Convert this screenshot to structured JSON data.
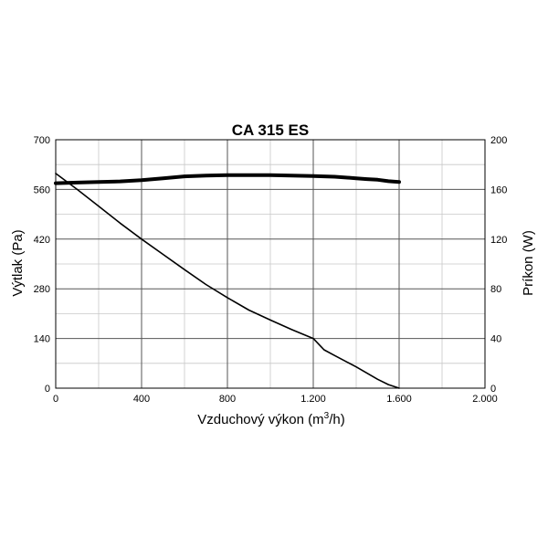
{
  "chart_data": {
    "type": "line",
    "title": "CA 315 ES",
    "xlabel": "Vzduchový výkon (m",
    "xlabel_sup": "3",
    "xlabel_end": "/h)",
    "ylabel_left": "Výtlak (Pa)",
    "ylabel_right": "Príkon (W)",
    "xlim": [
      0,
      2000
    ],
    "ylim_left": [
      0,
      700
    ],
    "ylim_right": [
      0,
      200
    ],
    "x_ticks": [
      {
        "value": 0,
        "label": "0"
      },
      {
        "value": 400,
        "label": "400"
      },
      {
        "value": 800,
        "label": "800"
      },
      {
        "value": 1200,
        "label": "1.200"
      },
      {
        "value": 1600,
        "label": "1.600"
      },
      {
        "value": 2000,
        "label": "2.000"
      }
    ],
    "y_left_ticks": [
      {
        "value": 0,
        "label": "0"
      },
      {
        "value": 140,
        "label": "140"
      },
      {
        "value": 280,
        "label": "280"
      },
      {
        "value": 420,
        "label": "420"
      },
      {
        "value": 560,
        "label": "560"
      },
      {
        "value": 700,
        "label": "700"
      }
    ],
    "y_right_ticks": [
      {
        "value": 0,
        "label": "0"
      },
      {
        "value": 40,
        "label": "40"
      },
      {
        "value": 80,
        "label": "80"
      },
      {
        "value": 120,
        "label": "120"
      },
      {
        "value": 160,
        "label": "160"
      },
      {
        "value": 200,
        "label": "200"
      }
    ],
    "grid": true,
    "series": [
      {
        "axis": "left",
        "line_width": "thin",
        "x": [
          0,
          100,
          200,
          300,
          400,
          500,
          600,
          700,
          800,
          900,
          1000,
          1100,
          1200,
          1250,
          1300,
          1400,
          1500,
          1550,
          1600
        ],
        "values": [
          605,
          560,
          513,
          465,
          420,
          377,
          334,
          292,
          255,
          220,
          192,
          165,
          140,
          108,
          92,
          60,
          25,
          10,
          0
        ]
      },
      {
        "axis": "right",
        "line_width": "thick",
        "x": [
          0,
          100,
          200,
          300,
          400,
          500,
          600,
          700,
          800,
          900,
          1000,
          1100,
          1200,
          1300,
          1400,
          1450,
          1500,
          1550,
          1600
        ],
        "values": [
          165,
          165.5,
          166,
          166.5,
          167.5,
          169,
          170.5,
          171.2,
          171.5,
          171.5,
          171.5,
          171.2,
          170.8,
          170.2,
          169,
          168.3,
          167.8,
          166.6,
          166
        ]
      }
    ]
  }
}
